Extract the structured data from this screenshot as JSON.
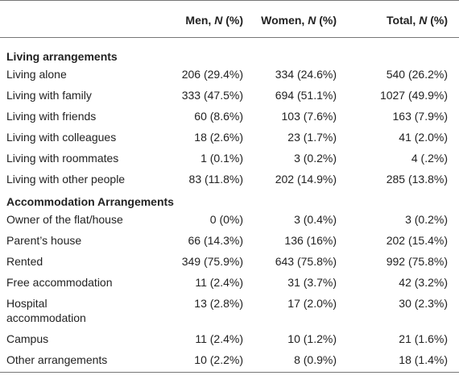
{
  "header": {
    "columns": [
      [
        "Men, ",
        "N",
        " (%)"
      ],
      [
        "Women, ",
        "N",
        " (%)"
      ],
      [
        "Total, ",
        "N",
        " (%)"
      ]
    ]
  },
  "sections": [
    {
      "title": "Living arrangements",
      "rows": [
        [
          "Living alone",
          "206 (29.4%)",
          "334 (24.6%)",
          "540 (26.2%)"
        ],
        [
          "Living with family",
          "333 (47.5%)",
          "694 (51.1%)",
          "1027 (49.9%)"
        ],
        [
          "Living with friends",
          "60 (8.6%)",
          "103 (7.6%)",
          "163 (7.9%)"
        ],
        [
          "Living with colleagues",
          "18 (2.6%)",
          "23 (1.7%)",
          "41 (2.0%)"
        ],
        [
          "Living with roommates",
          "1 (0.1%)",
          "3 (0.2%)",
          "4 (.2%)"
        ],
        [
          "Living with other people",
          "83 (11.8%)",
          "202 (14.9%)",
          "285 (13.8%)"
        ]
      ]
    },
    {
      "title": "Accommodation Arrangements",
      "rows": [
        [
          "Owner of the flat/house",
          "0 (0%)",
          "3 (0.4%)",
          "3 (0.2%)"
        ],
        [
          "Parent’s house",
          "66 (14.3%)",
          "136 (16%)",
          "202 (15.4%)"
        ],
        [
          "Rented",
          "349 (75.9%)",
          "643 (75.8%)",
          "992 (75.8%)"
        ],
        [
          "Free accommodation",
          "11 (2.4%)",
          "31 (3.7%)",
          "42 (3.2%)"
        ],
        [
          "Hospital\naccommodation",
          "13 (2.8%)",
          "17 (2.0%)",
          "30 (2.3%)"
        ],
        [
          "Campus",
          "11 (2.4%)",
          "10 (1.2%)",
          "21 (1.6%)"
        ],
        [
          "Other arrangements",
          "10 (2.2%)",
          "8 (0.9%)",
          "18 (1.4%)"
        ]
      ]
    }
  ]
}
